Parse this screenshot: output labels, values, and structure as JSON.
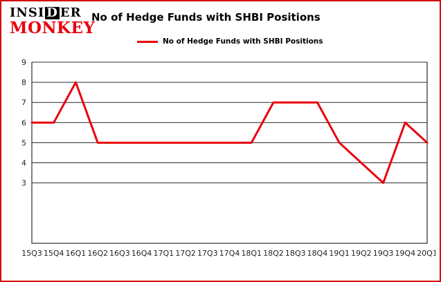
{
  "logo": {
    "part1": "INSI",
    "boxed_letter": "D",
    "part2": "ER",
    "line2": "MONKEY"
  },
  "title": "No of Hedge Funds with SHBI Positions",
  "legend": {
    "label": "No of Hedge Funds with SHBI Positions"
  },
  "colors": {
    "line": "#e8000d",
    "border": "#d40000",
    "grid": "#2b2b2b",
    "axis": "#000000",
    "text": "#222222",
    "logo_red": "#e8000d"
  },
  "chart_data": {
    "type": "line",
    "title": "No of Hedge Funds with SHBI Positions",
    "categories": [
      "15Q3",
      "15Q4",
      "16Q1",
      "16Q2",
      "16Q3",
      "16Q4",
      "17Q1",
      "17Q2",
      "17Q3",
      "17Q4",
      "18Q1",
      "18Q2",
      "18Q3",
      "18Q4",
      "19Q1",
      "19Q2",
      "19Q3",
      "19Q4",
      "20Q1"
    ],
    "values": [
      6,
      6,
      8,
      5,
      5,
      5,
      5,
      5,
      5,
      5,
      5,
      7,
      7,
      7,
      5,
      4,
      3,
      6,
      5
    ],
    "xlabel": "",
    "ylabel": "",
    "ylim": [
      0,
      9
    ],
    "yticks": [
      3,
      4,
      5,
      6,
      7,
      8,
      9
    ],
    "grid": true,
    "legend_position": "top-left"
  }
}
